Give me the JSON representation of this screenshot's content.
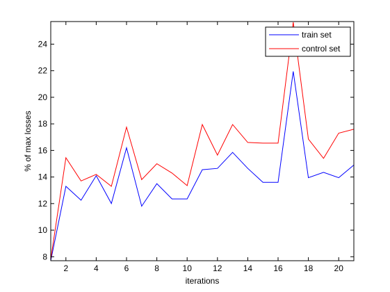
{
  "chart_data": {
    "type": "line",
    "title": "",
    "xlabel": "iterations",
    "ylabel": "% of max losses",
    "xlim": [
      1,
      21
    ],
    "ylim": [
      7.7,
      25.7
    ],
    "grid": false,
    "legend_position": "top-right",
    "xticks": [
      2,
      4,
      6,
      8,
      10,
      12,
      14,
      16,
      18,
      20
    ],
    "yticks": [
      8,
      10,
      12,
      14,
      16,
      18,
      20,
      22,
      24
    ],
    "x": [
      1,
      2,
      3,
      4,
      5,
      6,
      7,
      8,
      9,
      10,
      11,
      12,
      13,
      14,
      15,
      16,
      17,
      18,
      19,
      20,
      21
    ],
    "series": [
      {
        "name": "train set",
        "color": "#0000ff",
        "values": [
          7.7,
          13.3,
          12.25,
          14.1,
          12.0,
          16.2,
          11.8,
          13.5,
          12.35,
          12.35,
          14.55,
          14.65,
          15.85,
          14.65,
          13.6,
          13.6,
          21.95,
          13.95,
          14.35,
          13.95,
          14.9
        ]
      },
      {
        "name": "control set",
        "color": "#ff0000",
        "values": [
          7.8,
          15.45,
          13.7,
          14.2,
          13.3,
          17.75,
          13.8,
          15.0,
          14.3,
          13.35,
          17.95,
          15.65,
          17.95,
          16.6,
          16.55,
          16.55,
          25.65,
          16.85,
          15.4,
          17.3,
          17.6
        ]
      }
    ]
  }
}
